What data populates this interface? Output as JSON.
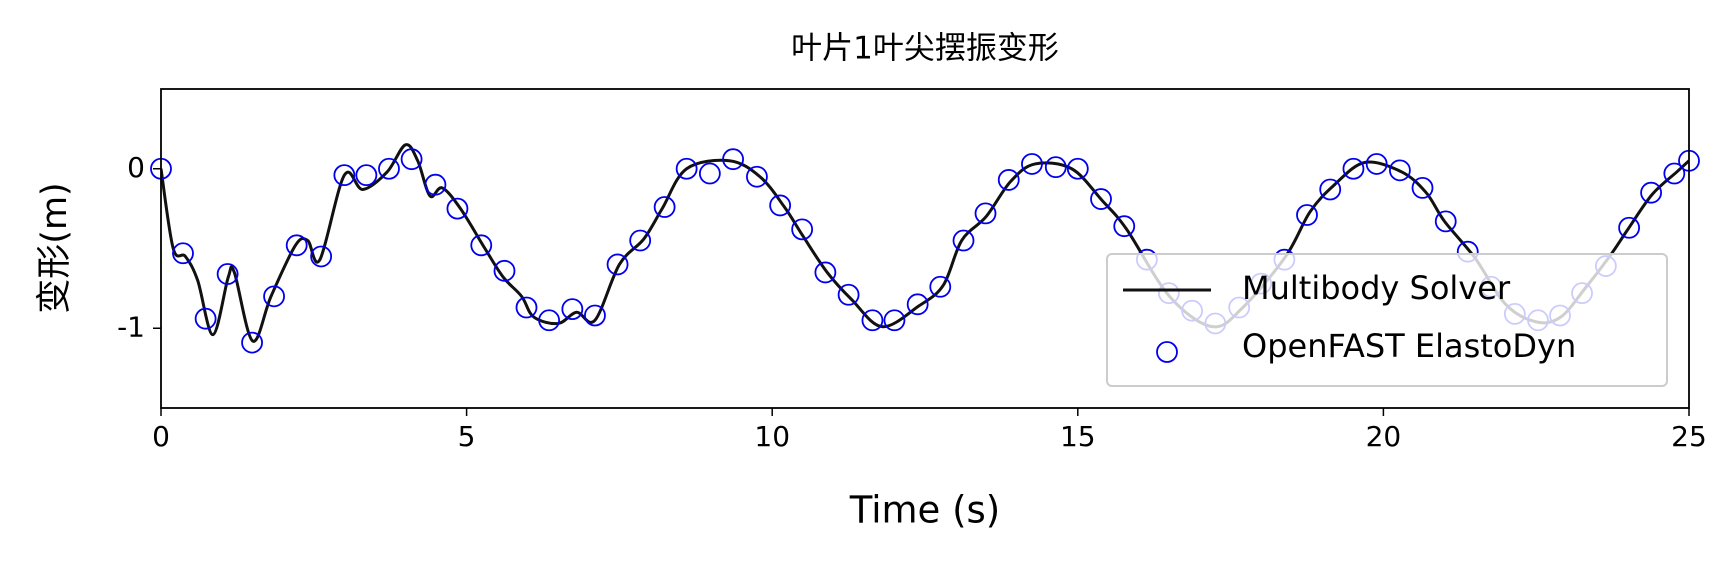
{
  "chart_data": {
    "type": "line-scatter",
    "title": "叶片1叶尖摆振变形",
    "x_label": "Time (s)",
    "y_label": "变形(m)",
    "xlim": [
      0,
      25
    ],
    "xticks": [
      0,
      5,
      10,
      15,
      20,
      25
    ],
    "ylim": [
      -1.5,
      0.5
    ],
    "yticks": [
      -1,
      0
    ],
    "legend": "lower right",
    "series": [
      {
        "name": "Multibody Solver",
        "type": "line",
        "color": "#111111",
        "x": [
          0,
          0.2,
          0.4,
          0.6,
          0.85,
          1.1,
          1.2,
          1.5,
          1.8,
          2.2,
          2.4,
          2.6,
          3.0,
          3.3,
          3.7,
          4.0,
          4.2,
          4.4,
          4.6,
          4.9,
          5.3,
          5.6,
          5.9,
          6.1,
          6.5,
          6.8,
          7.1,
          7.5,
          7.9,
          8.2,
          8.6,
          9.3,
          9.8,
          10.2,
          10.5,
          10.9,
          11.3,
          11.8,
          12.4,
          12.8,
          13.1,
          13.5,
          13.9,
          14.3,
          14.9,
          15.4,
          15.8,
          16.5,
          17.2,
          17.7,
          18.4,
          18.8,
          19.2,
          19.7,
          20.3,
          20.7,
          21.0,
          21.5,
          22.0,
          22.5,
          22.9,
          23.3,
          23.7,
          24.0,
          24.4,
          24.8,
          25.0
        ],
        "values": [
          0,
          -0.5,
          -0.55,
          -0.7,
          -1.04,
          -0.68,
          -0.65,
          -1.08,
          -0.8,
          -0.48,
          -0.45,
          -0.57,
          -0.04,
          -0.13,
          -0.02,
          0.15,
          0.05,
          -0.17,
          -0.12,
          -0.25,
          -0.5,
          -0.68,
          -0.8,
          -0.93,
          -0.97,
          -0.9,
          -0.95,
          -0.6,
          -0.44,
          -0.25,
          0.0,
          0.05,
          -0.05,
          -0.24,
          -0.42,
          -0.65,
          -0.82,
          -0.99,
          -0.86,
          -0.73,
          -0.45,
          -0.3,
          -0.08,
          0.03,
          0.0,
          -0.2,
          -0.38,
          -0.8,
          -0.99,
          -0.87,
          -0.55,
          -0.27,
          -0.1,
          0.04,
          -0.02,
          -0.15,
          -0.33,
          -0.56,
          -0.85,
          -0.96,
          -0.93,
          -0.75,
          -0.55,
          -0.38,
          -0.16,
          -0.02,
          0.05
        ]
      },
      {
        "name": "OpenFAST ElastoDyn",
        "type": "scatter",
        "color": "#0000ee",
        "x": [
          0,
          0.36,
          0.73,
          1.09,
          1.49,
          1.85,
          2.22,
          2.62,
          3.0,
          3.36,
          3.73,
          4.1,
          4.49,
          4.85,
          5.24,
          5.62,
          5.98,
          6.35,
          6.73,
          7.1,
          7.47,
          7.84,
          8.24,
          8.6,
          8.98,
          9.36,
          9.75,
          10.13,
          10.49,
          10.87,
          11.25,
          11.64,
          12.0,
          12.38,
          12.75,
          13.13,
          13.49,
          13.87,
          14.25,
          14.64,
          15.0,
          15.38,
          15.76,
          16.13,
          16.49,
          16.87,
          17.25,
          17.64,
          18.0,
          18.38,
          18.75,
          19.13,
          19.51,
          19.89,
          20.27,
          20.64,
          21.02,
          21.38,
          21.76,
          22.15,
          22.53,
          22.89,
          23.25,
          23.64,
          24.02,
          24.38,
          24.76,
          25.0
        ],
        "values": [
          0,
          -0.53,
          -0.94,
          -0.66,
          -1.09,
          -0.8,
          -0.48,
          -0.55,
          -0.04,
          -0.04,
          0.0,
          0.06,
          -0.1,
          -0.25,
          -0.48,
          -0.64,
          -0.87,
          -0.95,
          -0.88,
          -0.92,
          -0.6,
          -0.45,
          -0.24,
          0.0,
          -0.03,
          0.06,
          -0.05,
          -0.23,
          -0.38,
          -0.65,
          -0.79,
          -0.95,
          -0.95,
          -0.85,
          -0.74,
          -0.45,
          -0.28,
          -0.07,
          0.03,
          0.01,
          0.0,
          -0.19,
          -0.36,
          -0.57,
          -0.78,
          -0.89,
          -0.97,
          -0.87,
          -0.72,
          -0.57,
          -0.29,
          -0.13,
          0.0,
          0.03,
          -0.01,
          -0.12,
          -0.33,
          -0.52,
          -0.74,
          -0.91,
          -0.95,
          -0.92,
          -0.78,
          -0.61,
          -0.37,
          -0.15,
          -0.03,
          0.05
        ]
      }
    ]
  }
}
